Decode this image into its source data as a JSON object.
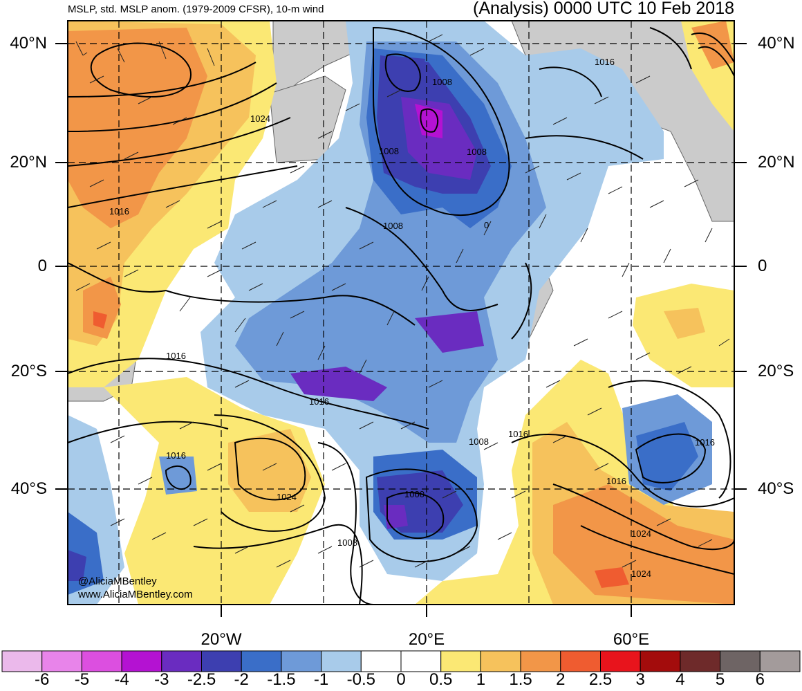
{
  "header": {
    "left_title": "MSLP, std. MSLP anom. (1979-2009 CFSR), 10-m wind",
    "right_title": "(Analysis) 0000 UTC 10 Feb 2018"
  },
  "lat_labels": [
    "40°N",
    "20°N",
    "0",
    "20°S",
    "40°S"
  ],
  "lon_labels": [
    "20°W",
    "20°E",
    "60°E"
  ],
  "isobar_labels": [
    "1024",
    "1016",
    "1008",
    "1008",
    "1008",
    "1008",
    "0",
    "1016",
    "1016",
    "1016",
    "1016",
    "1024",
    "1000",
    "1008",
    "1008",
    "1016",
    "1016",
    "1016",
    "1024",
    "1024"
  ],
  "credits": [
    "@AliciaMBentley",
    "www.AliciaMBentley.com"
  ],
  "colorbar": {
    "ticks": [
      "-6",
      "-5",
      "-4",
      "-3",
      "-2.5",
      "-2",
      "-1.5",
      "-1",
      "-0.5",
      "0",
      "0.5",
      "1",
      "1.5",
      "2",
      "2.5",
      "3",
      "4",
      "5",
      "6"
    ],
    "colors": [
      "#ebb9eb",
      "#e884ea",
      "#dc4fe0",
      "#b412d2",
      "#6a2cc0",
      "#3d3fb0",
      "#3a6ec8",
      "#6e9ad8",
      "#a8cbea",
      "#ffffff",
      "#ffffff",
      "#fbe874",
      "#f6c25c",
      "#f29648",
      "#ef5c30",
      "#e8141c",
      "#a30c0c",
      "#6e2a2a",
      "#6e6464",
      "#a39b9b"
    ]
  }
}
